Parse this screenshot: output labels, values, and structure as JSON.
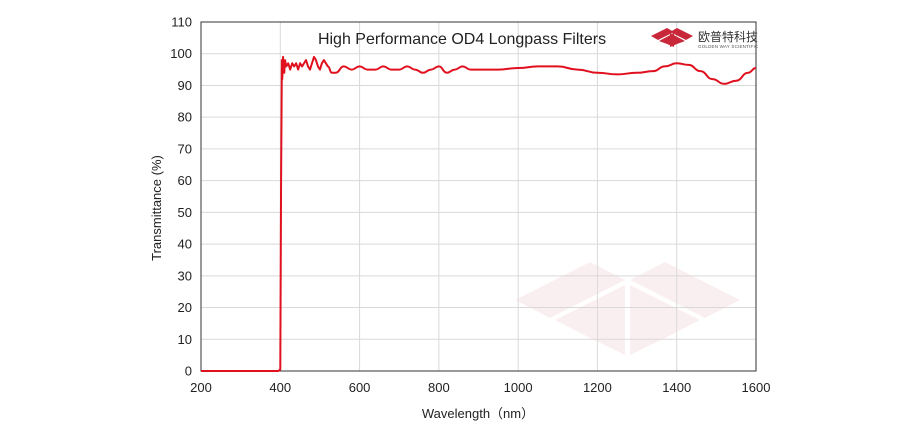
{
  "chart_data": {
    "type": "line",
    "title": "High Performance OD4 Longpass  Filters",
    "xlabel": "Wavelength（nm）",
    "ylabel": "Transmittance  (%)",
    "xlim": [
      200,
      1600
    ],
    "ylim": [
      0,
      110
    ],
    "xticks": [
      "200",
      "400",
      "600",
      "800",
      "1000",
      "1200",
      "1400",
      "1600"
    ],
    "yticks": [
      "0",
      "10",
      "20",
      "30",
      "40",
      "50",
      "60",
      "70",
      "80",
      "90",
      "100",
      "110"
    ],
    "grid": true,
    "line_color": "#e0101e",
    "series": [
      {
        "x": [
          200,
          395,
          400,
          402,
          404,
          405,
          407,
          408,
          410,
          412,
          415,
          420,
          425,
          430,
          435,
          440,
          445,
          450,
          455,
          460,
          465,
          470,
          475,
          480,
          485,
          490,
          495,
          500,
          505,
          510,
          520,
          530,
          540,
          560,
          580,
          600,
          620,
          640,
          660,
          680,
          700,
          720,
          740,
          760,
          780,
          800,
          820,
          840,
          860,
          880,
          900,
          920,
          950,
          1000,
          1050,
          1100,
          1150,
          1200,
          1250,
          1300,
          1340,
          1370,
          1400,
          1430,
          1460,
          1490,
          1520,
          1550,
          1580,
          1600
        ],
        "y": [
          0,
          0,
          0.5,
          60,
          98,
          92,
          99,
          95,
          94,
          98,
          96,
          97,
          95,
          97,
          96,
          97,
          95,
          97,
          96,
          97,
          98,
          96,
          95,
          97,
          99,
          98,
          96,
          95,
          97,
          98,
          96,
          94,
          94,
          96,
          95,
          96,
          95,
          95,
          96,
          95,
          95,
          96,
          95,
          94,
          95,
          96,
          94,
          95,
          96,
          95,
          95,
          95,
          95,
          95.5,
          96,
          96,
          95,
          94,
          93.5,
          94,
          94.5,
          96,
          97,
          96.5,
          94.5,
          92,
          90.5,
          91.5,
          94,
          95.5
        ]
      }
    ]
  },
  "logo": {
    "name_cn": "欧普特科技",
    "name_en": "GOLDEN WAY SCIENTIFIC",
    "color": "#c8283a"
  }
}
